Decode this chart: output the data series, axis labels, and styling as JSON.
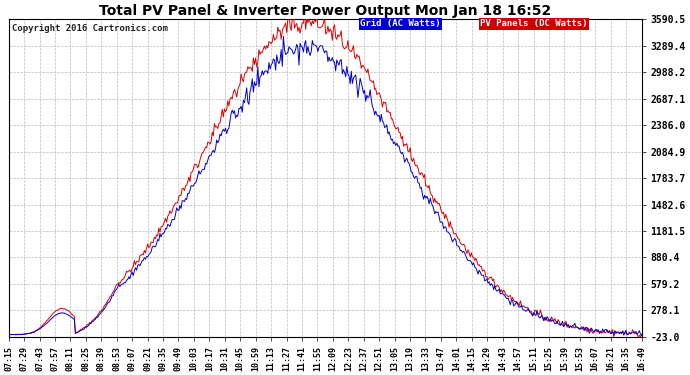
{
  "title": "Total PV Panel & Inverter Power Output Mon Jan 18 16:52",
  "copyright": "Copyright 2016 Cartronics.com",
  "legend_blue_label": "Grid (AC Watts)",
  "legend_red_label": "PV Panels (DC Watts)",
  "bg_color": "#ffffff",
  "grid_color": "#bbbbbb",
  "blue_color": "#0000cc",
  "red_color": "#dd0000",
  "legend_blue_bg": "#0000cc",
  "legend_red_bg": "#cc0000",
  "yticks": [
    -23.0,
    278.1,
    579.2,
    880.4,
    1181.5,
    1482.6,
    1783.7,
    2084.9,
    2386.0,
    2687.1,
    2988.2,
    3289.4,
    3590.5
  ],
  "ymin": -23.0,
  "ymax": 3590.5,
  "xtick_labels": [
    "07:15",
    "07:29",
    "07:43",
    "07:57",
    "08:11",
    "08:25",
    "08:39",
    "08:53",
    "09:07",
    "09:21",
    "09:35",
    "09:49",
    "10:03",
    "10:17",
    "10:31",
    "10:45",
    "10:59",
    "11:13",
    "11:27",
    "11:41",
    "11:55",
    "12:09",
    "12:23",
    "12:37",
    "12:51",
    "13:05",
    "13:19",
    "13:33",
    "13:47",
    "14:01",
    "14:15",
    "14:29",
    "14:43",
    "14:57",
    "15:11",
    "15:25",
    "15:39",
    "15:53",
    "16:07",
    "16:21",
    "16:35",
    "16:49"
  ],
  "figwidth": 6.9,
  "figheight": 3.75,
  "dpi": 100
}
